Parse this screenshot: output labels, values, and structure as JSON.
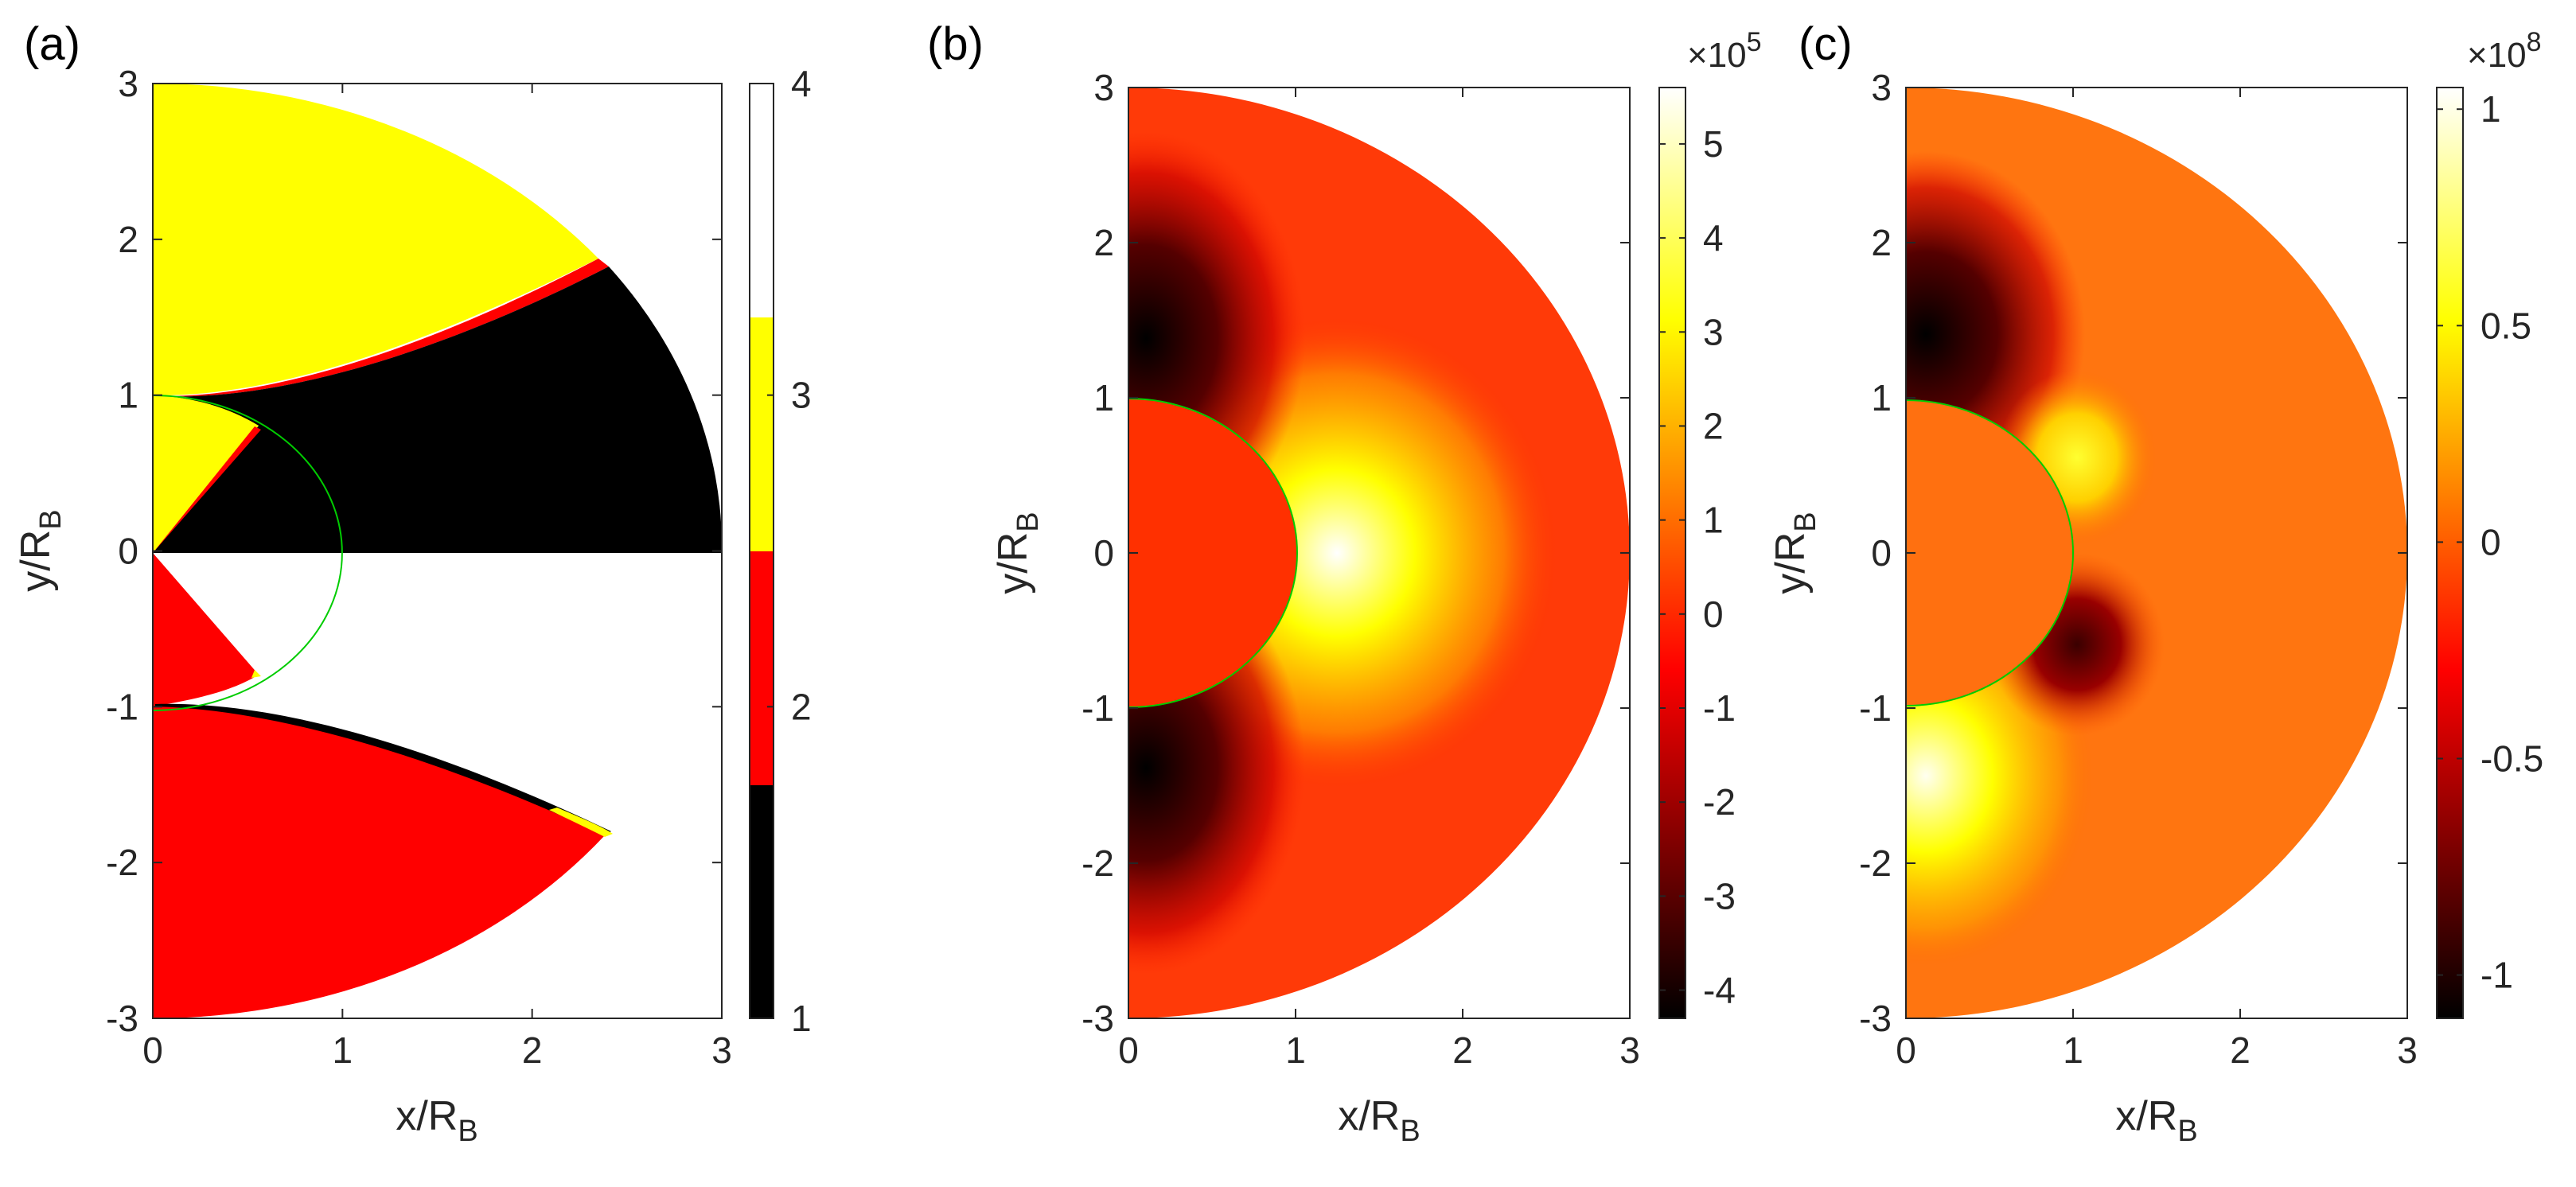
{
  "chart_data": [
    {
      "type": "heatmap",
      "panel_label": "(a)",
      "xlabel": "x/R",
      "xlabel_sub": "B",
      "ylabel": "y/R",
      "ylabel_sub": "B",
      "xlim": [
        0,
        3
      ],
      "ylim": [
        -3,
        3
      ],
      "xticks": [
        "0",
        "1",
        "2",
        "3"
      ],
      "yticks": [
        "3",
        "2",
        "1",
        "0",
        "-1",
        "-2",
        "-3"
      ],
      "colorbar": {
        "range": [
          1,
          4
        ],
        "ticks": [
          "4",
          "3",
          "2",
          "1"
        ],
        "levels": [
          {
            "value": 1,
            "color": "#000000"
          },
          {
            "value": 2,
            "color": "#ff0000"
          },
          {
            "value": 3,
            "color": "#ffff00"
          },
          {
            "value": 4,
            "color": "#ffffff"
          }
        ]
      },
      "inner_circle_radius": 1
    },
    {
      "type": "heatmap",
      "panel_label": "(b)",
      "xlabel": "x/R",
      "xlabel_sub": "B",
      "ylabel": "y/R",
      "ylabel_sub": "B",
      "xlim": [
        0,
        3
      ],
      "ylim": [
        -3,
        3
      ],
      "xticks": [
        "0",
        "1",
        "2",
        "3"
      ],
      "yticks": [
        "3",
        "2",
        "1",
        "0",
        "-1",
        "-2",
        "-3"
      ],
      "colorbar": {
        "range": [
          -4.3,
          5.6
        ],
        "multiplier_base": "×10",
        "multiplier_exp": "5",
        "ticks": [
          {
            "value": 5,
            "label": "5"
          },
          {
            "value": 4,
            "label": "4"
          },
          {
            "value": 3,
            "label": "3"
          },
          {
            "value": 2,
            "label": "2"
          },
          {
            "value": 1,
            "label": "1"
          },
          {
            "value": 0,
            "label": "0"
          },
          {
            "value": -1,
            "label": "-1"
          },
          {
            "value": -2,
            "label": "-2"
          },
          {
            "value": -3,
            "label": "-3"
          },
          {
            "value": -4,
            "label": "-4"
          }
        ],
        "colormap": "hot"
      },
      "inner_circle_radius": 1
    },
    {
      "type": "heatmap",
      "panel_label": "(c)",
      "xlabel": "x/R",
      "xlabel_sub": "B",
      "ylabel": "y/R",
      "ylabel_sub": "B",
      "xlim": [
        0,
        3
      ],
      "ylim": [
        -3,
        3
      ],
      "xticks": [
        "0",
        "1",
        "2",
        "3"
      ],
      "yticks": [
        "3",
        "2",
        "1",
        "0",
        "-1",
        "-2",
        "-3"
      ],
      "colorbar": {
        "range": [
          -1.1,
          1.05
        ],
        "multiplier_base": "×10",
        "multiplier_exp": "8",
        "ticks": [
          {
            "value": 1,
            "label": "1"
          },
          {
            "value": 0.5,
            "label": "0.5"
          },
          {
            "value": 0,
            "label": "0"
          },
          {
            "value": -0.5,
            "label": "-0.5"
          },
          {
            "value": -1,
            "label": "-1"
          }
        ],
        "colormap": "hot"
      },
      "inner_circle_radius": 1
    }
  ]
}
